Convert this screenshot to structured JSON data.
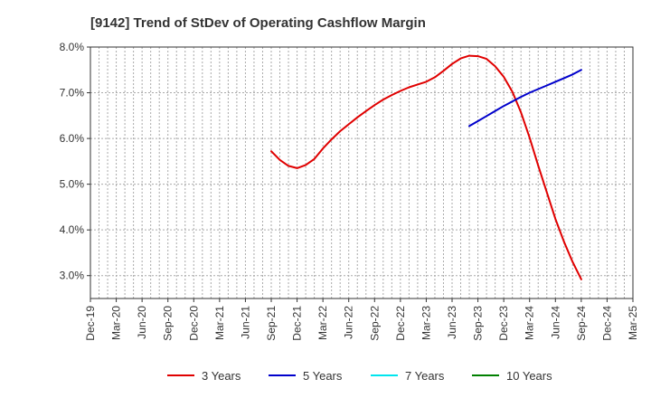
{
  "chart_data": {
    "type": "line",
    "title": "[9142]  Trend of StDev of Operating Cashflow Margin",
    "xlabel": "",
    "ylabel": "",
    "ylim": [
      2.5,
      8.0
    ],
    "yticks": [
      3.0,
      4.0,
      5.0,
      6.0,
      7.0,
      8.0
    ],
    "ytick_labels": [
      "3.0%",
      "4.0%",
      "5.0%",
      "6.0%",
      "7.0%",
      "8.0%"
    ],
    "x_categories": [
      "Dec-19",
      "Mar-20",
      "Jun-20",
      "Sep-20",
      "Dec-20",
      "Mar-21",
      "Jun-21",
      "Sep-21",
      "Dec-21",
      "Mar-22",
      "Jun-22",
      "Sep-22",
      "Dec-22",
      "Mar-23",
      "Jun-23",
      "Sep-23",
      "Dec-23",
      "Mar-24",
      "Jun-24",
      "Sep-24",
      "Dec-24",
      "Mar-25"
    ],
    "grid": true,
    "legend_position": "bottom",
    "series": [
      {
        "name": "3 Years",
        "color": "#e00000",
        "points": [
          [
            "Sep-21",
            5.72
          ],
          [
            "Oct-21",
            5.53
          ],
          [
            "Nov-21",
            5.4
          ],
          [
            "Dec-21",
            5.35
          ],
          [
            "Jan-22",
            5.42
          ],
          [
            "Feb-22",
            5.55
          ],
          [
            "Mar-22",
            5.78
          ],
          [
            "Apr-22",
            5.98
          ],
          [
            "May-22",
            6.16
          ],
          [
            "Jun-22",
            6.31
          ],
          [
            "Jul-22",
            6.46
          ],
          [
            "Aug-22",
            6.6
          ],
          [
            "Sep-22",
            6.73
          ],
          [
            "Oct-22",
            6.85
          ],
          [
            "Nov-22",
            6.95
          ],
          [
            "Dec-22",
            7.04
          ],
          [
            "Jan-23",
            7.12
          ],
          [
            "Feb-23",
            7.18
          ],
          [
            "Mar-23",
            7.24
          ],
          [
            "Apr-23",
            7.34
          ],
          [
            "May-23",
            7.48
          ],
          [
            "Jun-23",
            7.63
          ],
          [
            "Jul-23",
            7.75
          ],
          [
            "Aug-23",
            7.81
          ],
          [
            "Sep-23",
            7.8
          ],
          [
            "Oct-23",
            7.74
          ],
          [
            "Nov-23",
            7.58
          ],
          [
            "Dec-23",
            7.35
          ],
          [
            "Jan-24",
            7.02
          ],
          [
            "Feb-24",
            6.57
          ],
          [
            "Mar-24",
            6.02
          ],
          [
            "Apr-24",
            5.41
          ],
          [
            "May-24",
            4.82
          ],
          [
            "Jun-24",
            4.24
          ],
          [
            "Jul-24",
            3.74
          ],
          [
            "Aug-24",
            3.3
          ],
          [
            "Sep-24",
            2.92
          ]
        ]
      },
      {
        "name": "5 Years",
        "color": "#0000cc",
        "points": [
          [
            "Aug-23",
            6.27
          ],
          [
            "Sep-23",
            6.38
          ],
          [
            "Oct-23",
            6.49
          ],
          [
            "Nov-23",
            6.6
          ],
          [
            "Dec-23",
            6.71
          ],
          [
            "Jan-24",
            6.81
          ],
          [
            "Feb-24",
            6.91
          ],
          [
            "Mar-24",
            7.0
          ],
          [
            "Apr-24",
            7.08
          ],
          [
            "May-24",
            7.16
          ],
          [
            "Jun-24",
            7.24
          ],
          [
            "Jul-24",
            7.32
          ],
          [
            "Aug-24",
            7.4
          ],
          [
            "Sep-24",
            7.5
          ]
        ]
      },
      {
        "name": "7 Years",
        "color": "#00e5ee",
        "points": []
      },
      {
        "name": "10 Years",
        "color": "#008000",
        "points": []
      }
    ]
  }
}
